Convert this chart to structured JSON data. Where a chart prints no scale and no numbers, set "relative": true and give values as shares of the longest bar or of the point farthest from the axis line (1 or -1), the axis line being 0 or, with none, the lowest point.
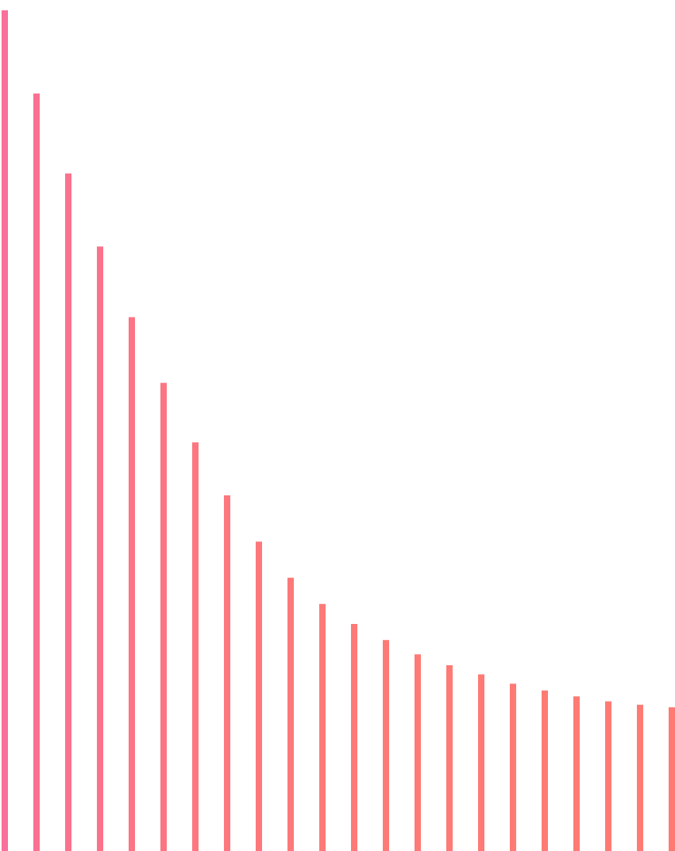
{
  "chart_data": {
    "type": "bar",
    "relative": true,
    "categories": [
      null,
      null,
      null,
      null,
      null,
      null,
      null,
      null,
      null,
      null,
      null,
      null,
      null,
      null,
      null,
      null,
      null,
      null,
      null,
      null,
      null,
      null
    ],
    "values": [
      1,
      0.901,
      0.806,
      0.719,
      0.635,
      0.557,
      0.486,
      0.423,
      0.368,
      0.325,
      0.294,
      0.27,
      0.251,
      0.234,
      0.221,
      0.21,
      0.199,
      0.191,
      0.184,
      0.178,
      0.174,
      0.171
    ],
    "colors": [
      "#f9709a",
      "#f97191",
      "#fa728d",
      "#fa738a",
      "#fb7586",
      "#fb7683",
      "#fc7780",
      "#fc777e",
      "#fd787b",
      "#fd7979",
      "#fd7978",
      "#fd7977",
      "#fd7a76",
      "#fe7a76",
      "#fe7a75",
      "#fe7a75",
      "#fe7a74",
      "#fe7b74",
      "#fe7b74",
      "#fe7b73",
      "#fe7b73",
      "#fe7b73"
    ]
  }
}
